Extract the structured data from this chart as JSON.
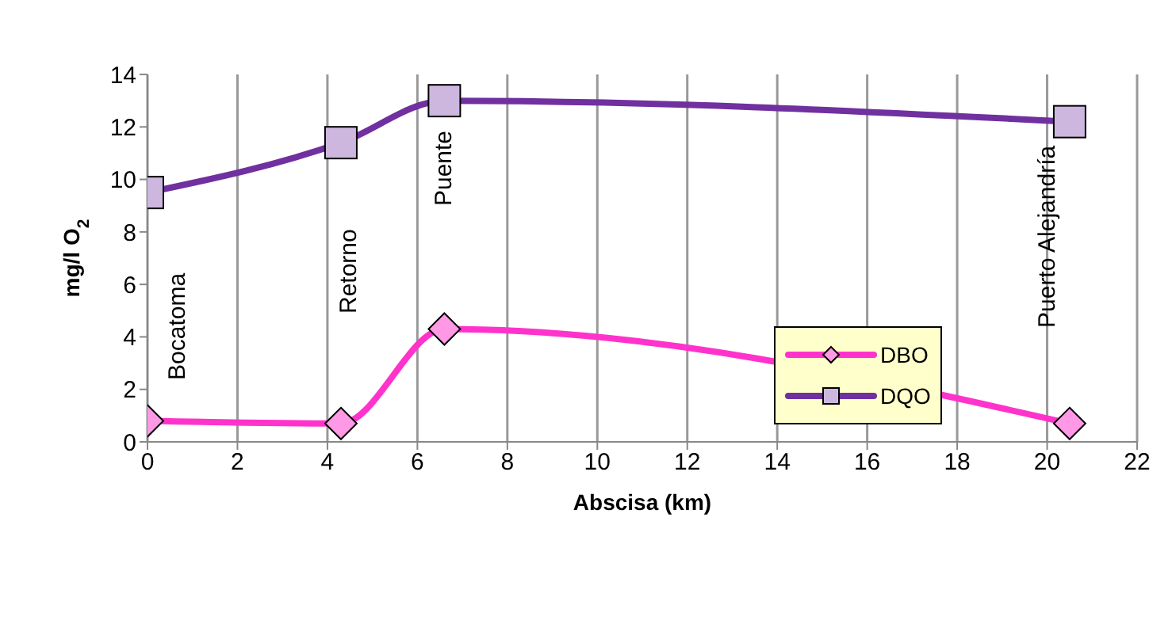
{
  "chart_data": {
    "type": "line",
    "xlabel": "Abscisa (km)",
    "ylabel": "mg/l O$_{2}$",
    "x": [
      0,
      4.3,
      6.6,
      20.5
    ],
    "series": [
      {
        "name": "DBO",
        "color": "#ff33cc",
        "marker": "diamond",
        "values": [
          0.8,
          0.7,
          4.3,
          0.7
        ]
      },
      {
        "name": "DQO",
        "color": "#7030a0",
        "marker": "square",
        "values": [
          9.5,
          11.4,
          13.0,
          12.2
        ]
      }
    ],
    "xlim": [
      0,
      22
    ],
    "xticks": [
      0,
      2,
      4,
      6,
      8,
      10,
      12,
      14,
      16,
      18,
      20,
      22
    ],
    "ylim": [
      0,
      14
    ],
    "yticks": [
      0,
      2,
      4,
      6,
      8,
      10,
      12,
      14
    ],
    "grid": "x",
    "legend": "right",
    "annotations": [
      "Bocatoma",
      "Retorno",
      "Puente",
      "Puerto Alejandría"
    ]
  }
}
